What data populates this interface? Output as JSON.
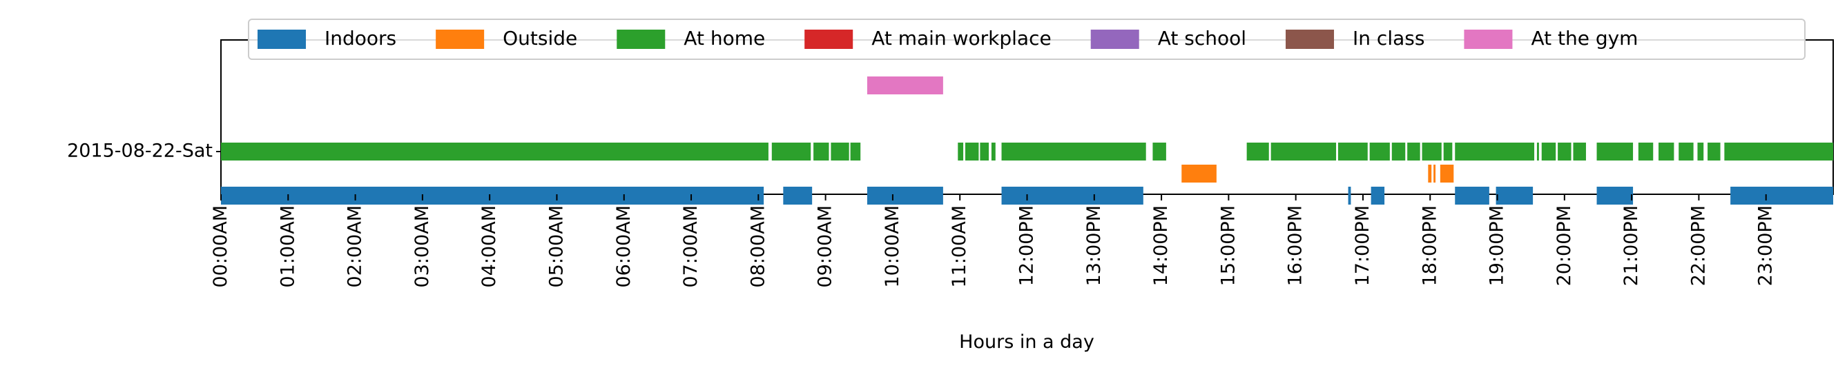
{
  "chart_data": {
    "type": "timeline",
    "xlabel": "Hours in a day",
    "xlim": [
      0,
      24
    ],
    "category": "2015-08-22-Sat",
    "xticks": [
      0,
      1,
      2,
      3,
      4,
      5,
      6,
      7,
      8,
      9,
      10,
      11,
      12,
      13,
      14,
      15,
      16,
      17,
      18,
      19,
      20,
      21,
      22,
      23
    ],
    "xtick_labels": [
      "00:00AM",
      "01:00AM",
      "02:00AM",
      "03:00AM",
      "04:00AM",
      "05:00AM",
      "06:00AM",
      "07:00AM",
      "08:00AM",
      "09:00AM",
      "10:00AM",
      "11:00AM",
      "12:00PM",
      "13:00PM",
      "14:00PM",
      "15:00PM",
      "16:00PM",
      "17:00PM",
      "18:00PM",
      "19:00PM",
      "20:00PM",
      "21:00PM",
      "22:00PM",
      "23:00PM"
    ],
    "legend_position": "top",
    "series": [
      {
        "name": "Indoors",
        "color": "#1f77b4",
        "lane": -1,
        "intervals": [
          [
            0.0,
            8.08
          ],
          [
            8.37,
            8.8
          ],
          [
            9.62,
            10.75
          ],
          [
            11.62,
            13.73
          ],
          [
            16.78,
            16.82
          ],
          [
            17.12,
            17.32
          ],
          [
            18.37,
            18.88
          ],
          [
            18.98,
            19.53
          ],
          [
            20.48,
            21.02
          ],
          [
            22.47,
            24.0
          ]
        ]
      },
      {
        "name": "Outside",
        "color": "#ff7f0e",
        "lane": -0.5,
        "intervals": [
          [
            14.3,
            14.82
          ],
          [
            17.97,
            18.02
          ],
          [
            18.05,
            18.08
          ],
          [
            18.15,
            18.35
          ]
        ]
      },
      {
        "name": "At home",
        "color": "#2ca02c",
        "lane": 0,
        "intervals": [
          [
            0.0,
            8.15
          ],
          [
            8.2,
            8.78
          ],
          [
            8.82,
            9.05
          ],
          [
            9.08,
            9.35
          ],
          [
            9.37,
            9.52
          ],
          [
            10.97,
            11.05
          ],
          [
            11.08,
            11.28
          ],
          [
            11.3,
            11.43
          ],
          [
            11.47,
            11.53
          ],
          [
            11.62,
            13.77
          ],
          [
            13.87,
            14.07
          ],
          [
            15.27,
            15.6
          ],
          [
            15.63,
            16.6
          ],
          [
            16.63,
            17.07
          ],
          [
            17.1,
            17.4
          ],
          [
            17.43,
            17.63
          ],
          [
            17.66,
            17.85
          ],
          [
            17.88,
            18.17
          ],
          [
            18.2,
            18.33
          ],
          [
            18.37,
            19.55
          ],
          [
            19.59,
            19.62
          ],
          [
            19.66,
            19.87
          ],
          [
            19.9,
            20.1
          ],
          [
            20.13,
            20.32
          ],
          [
            20.48,
            21.02
          ],
          [
            21.1,
            21.32
          ],
          [
            21.4,
            21.63
          ],
          [
            21.7,
            21.92
          ],
          [
            21.98,
            22.07
          ],
          [
            22.13,
            22.32
          ],
          [
            22.38,
            24.0
          ]
        ]
      },
      {
        "name": "At main workplace",
        "color": "#d62728",
        "lane": 0.5,
        "intervals": []
      },
      {
        "name": "At school",
        "color": "#9467bd",
        "lane": 1,
        "intervals": []
      },
      {
        "name": "In class",
        "color": "#8c564b",
        "lane": 1.5,
        "intervals": []
      },
      {
        "name": "At the gym",
        "color": "#e377c2",
        "lane": 1.5,
        "intervals": [
          [
            9.62,
            10.75
          ]
        ]
      }
    ]
  }
}
